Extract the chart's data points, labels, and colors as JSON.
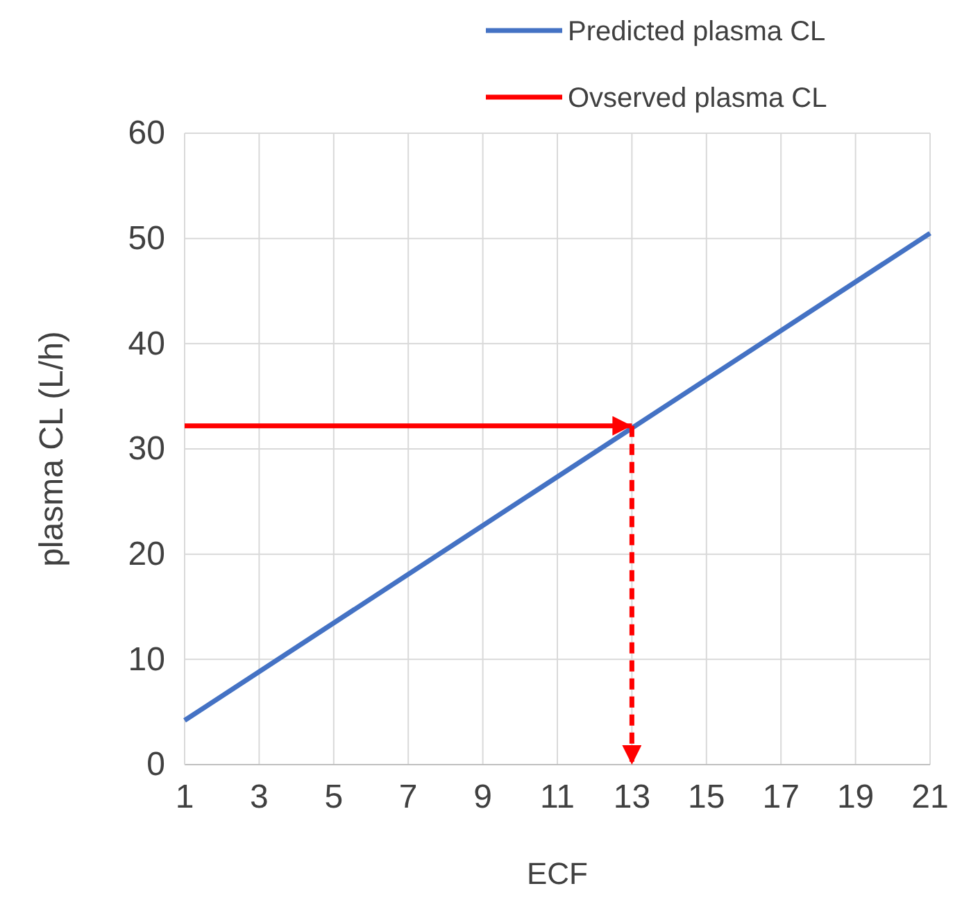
{
  "chart_data": {
    "type": "line",
    "xlabel": "ECF",
    "ylabel": "plasma CL (L/h)",
    "xlim": [
      1,
      21
    ],
    "xticks": [
      1,
      3,
      5,
      7,
      9,
      11,
      13,
      15,
      17,
      19,
      21
    ],
    "ylim": [
      0,
      60
    ],
    "yticks": [
      0,
      10,
      20,
      30,
      40,
      50,
      60
    ],
    "grid": true,
    "legend": "top right",
    "series": [
      {
        "name": "Predicted plasma CL",
        "color": "#4472c4",
        "x": [
          1,
          21
        ],
        "values": [
          4.2,
          50.5
        ],
        "line_style": "solid"
      },
      {
        "name": "Ovserved plasma CL",
        "color": "#ff0000",
        "x": [
          1,
          13
        ],
        "values": [
          32.2,
          32.2
        ],
        "line_style": "solid"
      },
      {
        "color": "#ff0000",
        "x": [
          13,
          13
        ],
        "values": [
          32.2,
          0
        ],
        "line_style": "dashed"
      }
    ]
  }
}
